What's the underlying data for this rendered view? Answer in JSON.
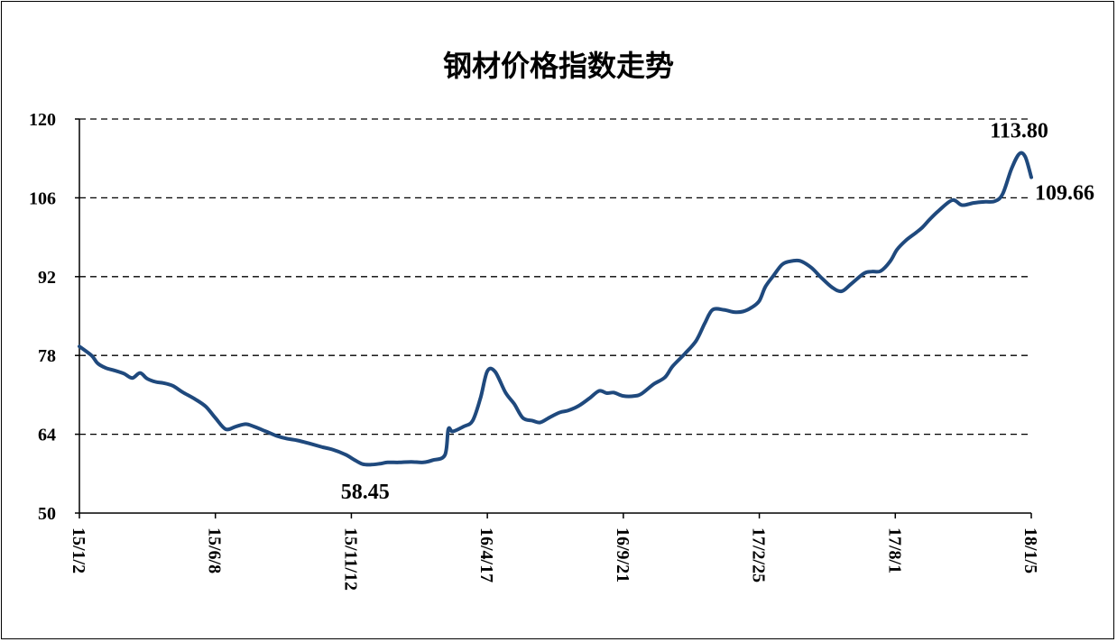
{
  "chart_data": {
    "type": "line",
    "title": "钢材价格指数走势",
    "xlabel": "",
    "ylabel": "",
    "ylim": [
      50,
      120
    ],
    "yticks": [
      50,
      64,
      78,
      92,
      106,
      120
    ],
    "xticks": [
      "15/1/2",
      "15/6/8",
      "15/11/12",
      "16/4/17",
      "16/9/21",
      "17/2/25",
      "17/8/1",
      "18/1/5"
    ],
    "grid": "horizontal-dashed",
    "series": [
      {
        "color": "#1F497D",
        "x": [
          "2015-01-02",
          "2015-01-16",
          "2015-01-23",
          "2015-02-01",
          "2015-02-10",
          "2015-02-22",
          "2015-03-04",
          "2015-03-13",
          "2015-03-21",
          "2015-03-31",
          "2015-04-09",
          "2015-04-20",
          "2015-05-01",
          "2015-05-16",
          "2015-05-28",
          "2015-06-08",
          "2015-06-20",
          "2015-07-02",
          "2015-07-13",
          "2015-07-22",
          "2015-08-04",
          "2015-08-18",
          "2015-08-30",
          "2015-09-11",
          "2015-09-26",
          "2015-10-10",
          "2015-10-21",
          "2015-11-05",
          "2015-11-15",
          "2015-11-25",
          "2015-12-05",
          "2015-12-16",
          "2015-12-24",
          "2016-01-06",
          "2016-01-20",
          "2016-02-03",
          "2016-02-14",
          "2016-02-28",
          "2016-03-03",
          "2016-03-08",
          "2016-03-21",
          "2016-03-31",
          "2016-04-09",
          "2016-04-17",
          "2016-04-26",
          "2016-05-08",
          "2016-05-18",
          "2016-05-28",
          "2016-06-08",
          "2016-06-17",
          "2016-06-28",
          "2016-07-10",
          "2016-07-19",
          "2016-07-31",
          "2016-08-13",
          "2016-08-24",
          "2016-09-02",
          "2016-09-10",
          "2016-09-21",
          "2016-10-04",
          "2016-10-12",
          "2016-10-26",
          "2016-11-08",
          "2016-11-17",
          "2016-12-01",
          "2016-12-14",
          "2016-12-24",
          "2017-01-02",
          "2017-01-15",
          "2017-01-27",
          "2017-02-06",
          "2017-02-16",
          "2017-02-25",
          "2017-03-04",
          "2017-03-13",
          "2017-03-23",
          "2017-04-01",
          "2017-04-13",
          "2017-04-26",
          "2017-05-07",
          "2017-05-20",
          "2017-05-31",
          "2017-06-11",
          "2017-06-26",
          "2017-07-05",
          "2017-07-15",
          "2017-07-26",
          "2017-08-03",
          "2017-08-13",
          "2017-08-24",
          "2017-09-01",
          "2017-09-10",
          "2017-09-20",
          "2017-10-06",
          "2017-10-17",
          "2017-10-31",
          "2017-11-13",
          "2017-11-24",
          "2017-12-03",
          "2017-12-13",
          "2017-12-22",
          "2017-12-29",
          "2018-01-05"
        ],
        "values": [
          79.6,
          78.0,
          76.6,
          75.8,
          75.4,
          74.8,
          74.0,
          74.9,
          73.9,
          73.3,
          73.1,
          72.6,
          71.5,
          70.2,
          68.9,
          66.9,
          64.9,
          65.4,
          65.8,
          65.4,
          64.6,
          63.7,
          63.2,
          62.9,
          62.3,
          61.7,
          61.3,
          60.4,
          59.5,
          58.7,
          58.6,
          58.8,
          59.0,
          59.0,
          59.1,
          59.0,
          59.4,
          60.3,
          64.9,
          64.5,
          65.4,
          66.4,
          70.4,
          75.2,
          75.1,
          71.4,
          69.4,
          66.9,
          66.4,
          66.1,
          67.0,
          67.9,
          68.2,
          69.0,
          70.4,
          71.7,
          71.3,
          71.4,
          70.8,
          70.8,
          71.2,
          72.9,
          74.1,
          76.1,
          78.3,
          80.6,
          83.7,
          86.1,
          86.1,
          85.7,
          85.8,
          86.5,
          87.7,
          90.2,
          92.1,
          94.1,
          94.7,
          94.8,
          93.6,
          91.9,
          90.1,
          89.4,
          90.7,
          92.6,
          92.9,
          93.0,
          94.7,
          96.8,
          98.4,
          99.7,
          100.7,
          102.2,
          103.7,
          105.6,
          104.7,
          105.1,
          105.3,
          105.4,
          106.7,
          111.1,
          113.8,
          113.3,
          109.66
        ]
      }
    ],
    "annotations": [
      {
        "text": "58.45",
        "x": "2015-11-28",
        "y": 58.45
      },
      {
        "text": "113.80",
        "x": "2017-12-22",
        "y": 113.8
      },
      {
        "text": "109.66",
        "x": "2018-01-05",
        "y": 109.66
      }
    ]
  }
}
